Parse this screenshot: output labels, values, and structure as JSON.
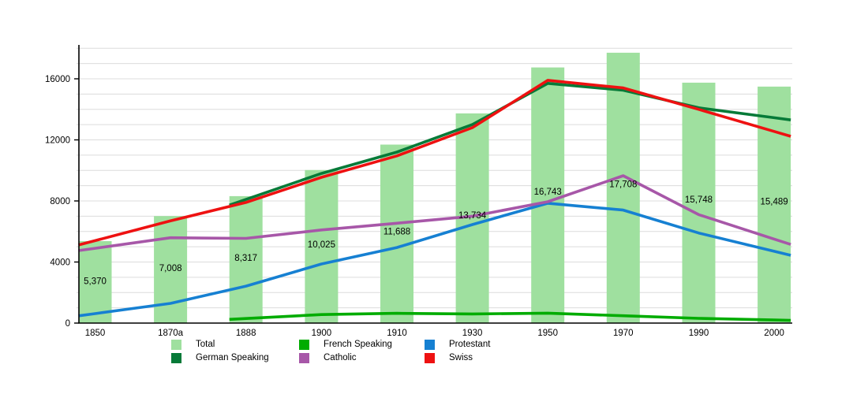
{
  "chart_data": {
    "type": "bar",
    "subtype": "combo-bar-line",
    "title": "",
    "xlabel": "",
    "ylabel": "",
    "grid": true,
    "categories": [
      "1850",
      "1870a",
      "1888",
      "1900",
      "1910",
      "1930",
      "1950",
      "1970",
      "1990",
      "2000"
    ],
    "bar_series": {
      "name": "Total",
      "color": "#9fe09f",
      "values": [
        5370,
        7008,
        8317,
        10025,
        11688,
        13734,
        16743,
        17708,
        15748,
        15489
      ],
      "value_labels": [
        "5,370",
        "7,008",
        "8,317",
        "10,025",
        "11,688",
        "13,734",
        "16,743",
        "17,708",
        "15,748",
        "15,489"
      ]
    },
    "line_series": [
      {
        "name": "German Speaking",
        "color": "#067a38",
        "values": [
          null,
          null,
          8100,
          9800,
          11200,
          13000,
          15700,
          15250,
          14100,
          13450
        ]
      },
      {
        "name": "French Speaking",
        "color": "#00ac00",
        "values": [
          null,
          null,
          300,
          560,
          640,
          600,
          650,
          480,
          310,
          200
        ]
      },
      {
        "name": "Protestant",
        "color": "#1680d2",
        "values": [
          620,
          1290,
          2420,
          3870,
          4950,
          6450,
          7850,
          7400,
          5900,
          4700
        ]
      },
      {
        "name": "Catholic",
        "color": "#a757a8",
        "values": [
          4900,
          5590,
          5550,
          6100,
          6540,
          7000,
          7950,
          9650,
          7100,
          5500
        ]
      },
      {
        "name": "Swiss",
        "color": "#ee1111",
        "values": [
          5400,
          6700,
          7900,
          9550,
          10950,
          12800,
          15900,
          15400,
          14000,
          12550
        ]
      }
    ],
    "y_axis": {
      "min": 0,
      "max": 18300,
      "grid_interval": 1000,
      "label_interval": 4000,
      "tick_labels": [
        "0",
        "4000",
        "8000",
        "12000",
        "16000"
      ]
    },
    "legend": {
      "position": "bottom",
      "items": [
        {
          "label": "Total",
          "color": "#9fe09f"
        },
        {
          "label": "French Speaking",
          "color": "#00ac00"
        },
        {
          "label": "Protestant",
          "color": "#1680d2"
        },
        {
          "label": "German Speaking",
          "color": "#067a38"
        },
        {
          "label": "Catholic",
          "color": "#a757a8"
        },
        {
          "label": "Swiss",
          "color": "#ee1111"
        }
      ]
    }
  }
}
